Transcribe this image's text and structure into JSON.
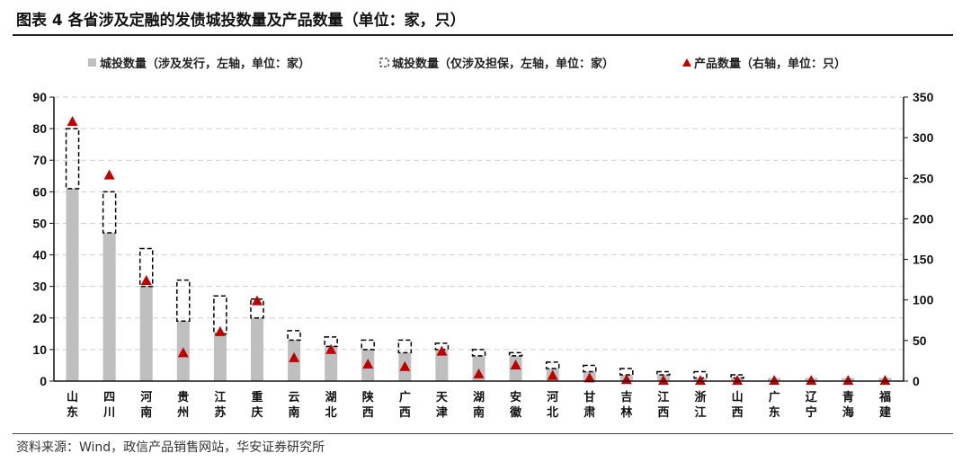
{
  "title": "图表 4 各省涉及定融的发债城投数量及产品数量（单位：家，只）",
  "source": "资料来源：Wind，政信产品销售网站，华安证券研究所",
  "chart_data": {
    "type": "bar",
    "categories": [
      "山东",
      "四川",
      "河南",
      "贵州",
      "江苏",
      "重庆",
      "云南",
      "湖北",
      "陕西",
      "广西",
      "天津",
      "湖南",
      "安徽",
      "河北",
      "甘肃",
      "吉林",
      "江西",
      "浙江",
      "山西",
      "广东",
      "辽宁",
      "青海",
      "福建"
    ],
    "series": [
      {
        "name": "城投数量（涉及发行，左轴，单位：家）",
        "type": "bar",
        "axis": "left",
        "color": "#bfbfbf",
        "values": [
          61,
          47,
          30,
          19,
          15,
          20,
          13,
          11,
          10,
          9,
          10,
          8,
          8,
          4,
          3,
          2,
          2,
          1,
          1,
          1,
          1,
          1,
          1
        ]
      },
      {
        "name": "城投数量（仅涉及担保，左轴，单位：家）",
        "type": "stacked-bar-dashed-outline",
        "axis": "left",
        "color": "#000000",
        "values": [
          19,
          13,
          12,
          13,
          12,
          6,
          3,
          3,
          3,
          4,
          2,
          2,
          1,
          2,
          2,
          2,
          1,
          2,
          1,
          0,
          0,
          0,
          0
        ]
      },
      {
        "name": "产品数量（右轴，单位：只）",
        "type": "scatter-triangle",
        "axis": "right",
        "color": "#c00000",
        "values": [
          320,
          254,
          124,
          35,
          61,
          99,
          29,
          39,
          21,
          18,
          37,
          9,
          20,
          7,
          4,
          2,
          1,
          1,
          1,
          1,
          1,
          1,
          1
        ]
      }
    ],
    "y_left": {
      "range": [
        0,
        90
      ],
      "ticks": [
        0,
        10,
        20,
        30,
        40,
        50,
        60,
        70,
        80,
        90
      ]
    },
    "y_right": {
      "range": [
        0,
        350
      ],
      "ticks": [
        0,
        50,
        100,
        150,
        200,
        250,
        300,
        350
      ]
    },
    "grid": "horizontal dashed",
    "legend": "top"
  }
}
